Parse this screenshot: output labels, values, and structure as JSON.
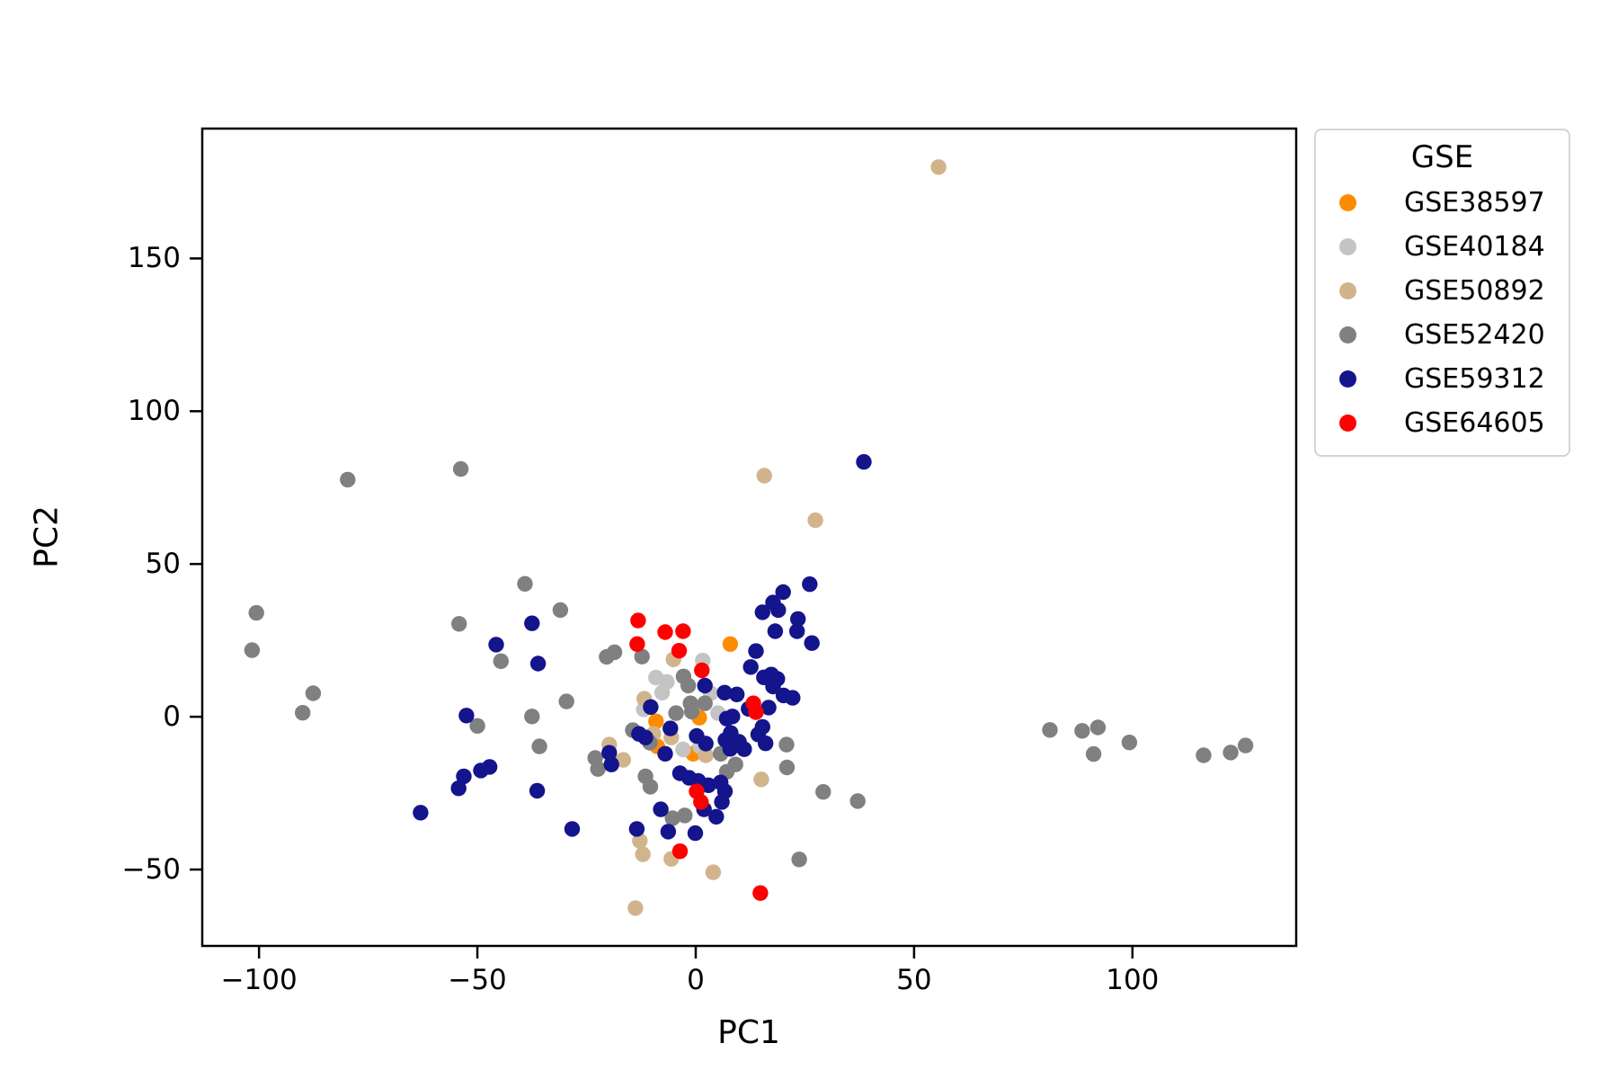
{
  "figure": {
    "background": "#ffffff"
  },
  "chart_data": {
    "type": "scatter",
    "title": "",
    "xlabel": "PC1",
    "ylabel": "PC2",
    "legend_title": "GSE",
    "legend_position": "upper right, outside axes",
    "grid": false,
    "xlim": [
      -113,
      137.5
    ],
    "ylim": [
      -75,
      192.5
    ],
    "x_ticks": [
      -100,
      -50,
      0,
      50,
      100
    ],
    "x_tick_labels": [
      "−100",
      "−50",
      "0",
      "50",
      "100"
    ],
    "y_ticks": [
      -50,
      0,
      50,
      100,
      150
    ],
    "y_tick_labels": [
      "−50",
      "0",
      "50",
      "100",
      "150"
    ],
    "marker_radius_px": 8.7,
    "series": [
      {
        "name": "GSE38597",
        "color": "#ff8c00",
        "points": [
          [
            7.9,
            23.8
          ],
          [
            -9.1,
            -1.5
          ],
          [
            0.8,
            -0.3
          ],
          [
            -8.8,
            -9.7
          ],
          [
            -0.6,
            -12.1
          ]
        ]
      },
      {
        "name": "GSE40184",
        "color": "#c4c4c4",
        "points": [
          [
            1.6,
            18.4
          ],
          [
            -9.1,
            12.8
          ],
          [
            -6.6,
            11.4
          ],
          [
            -7.7,
            7.9
          ],
          [
            3.4,
            7.7
          ],
          [
            5.1,
            1.2
          ],
          [
            -2.9,
            -10.7
          ],
          [
            1.0,
            -9.7
          ],
          [
            -11.9,
            2.4
          ]
        ]
      },
      {
        "name": "GSE50892",
        "color": "#d2b48c",
        "points": [
          [
            55.6,
            179.9
          ],
          [
            15.7,
            78.9
          ],
          [
            27.4,
            64.3
          ],
          [
            -5.1,
            18.8
          ],
          [
            -11.8,
            5.9
          ],
          [
            -9.7,
            -5.6
          ],
          [
            -5.6,
            -6.8
          ],
          [
            -19.8,
            -9.1
          ],
          [
            -16.6,
            -14.1
          ],
          [
            2.3,
            -12.6
          ],
          [
            15.0,
            -20.5
          ],
          [
            -12.8,
            -40.6
          ],
          [
            -12.1,
            -45.0
          ],
          [
            -5.6,
            -46.5
          ],
          [
            4.0,
            -50.9
          ],
          [
            -13.8,
            -62.6
          ]
        ]
      },
      {
        "name": "GSE52420",
        "color": "#808080",
        "points": [
          [
            -79.7,
            77.6
          ],
          [
            -53.8,
            81.1
          ],
          [
            -100.6,
            34.0
          ],
          [
            -54.2,
            30.4
          ],
          [
            -101.6,
            21.8
          ],
          [
            -44.6,
            18.2
          ],
          [
            -87.6,
            7.7
          ],
          [
            -90.0,
            1.3
          ],
          [
            -50.0,
            -3.0
          ],
          [
            -39.1,
            43.5
          ],
          [
            -31.0,
            34.9
          ],
          [
            -20.4,
            19.6
          ],
          [
            -18.6,
            21.1
          ],
          [
            -12.3,
            19.7
          ],
          [
            -2.8,
            13.2
          ],
          [
            -1.7,
            10.2
          ],
          [
            -1.2,
            4.4
          ],
          [
            2.1,
            4.4
          ],
          [
            -0.9,
            1.7
          ],
          [
            -4.5,
            1.2
          ],
          [
            -14.4,
            -4.4
          ],
          [
            -10.5,
            -8.5
          ],
          [
            -37.5,
            0.1
          ],
          [
            -29.6,
            5.0
          ],
          [
            -35.8,
            -9.7
          ],
          [
            -23.0,
            -13.5
          ],
          [
            -22.4,
            -17.1
          ],
          [
            -11.5,
            -19.5
          ],
          [
            -10.4,
            -22.9
          ],
          [
            -5.3,
            -33.2
          ],
          [
            -2.5,
            -32.3
          ],
          [
            5.7,
            -12.1
          ],
          [
            9.1,
            -15.6
          ],
          [
            7.1,
            -18.0
          ],
          [
            20.8,
            -9.1
          ],
          [
            20.9,
            -16.6
          ],
          [
            29.2,
            -24.6
          ],
          [
            37.1,
            -27.6
          ],
          [
            23.7,
            -46.7
          ],
          [
            81.1,
            -4.3
          ],
          [
            88.5,
            -4.6
          ],
          [
            92.1,
            -3.5
          ],
          [
            91.1,
            -12.2
          ],
          [
            99.3,
            -8.4
          ],
          [
            116.3,
            -12.6
          ],
          [
            122.5,
            -11.7
          ],
          [
            125.9,
            -9.4
          ]
        ]
      },
      {
        "name": "GSE59312",
        "color": "#14148c",
        "points": [
          [
            -45.7,
            23.6
          ],
          [
            -37.5,
            30.6
          ],
          [
            -36.1,
            17.4
          ],
          [
            -52.5,
            0.4
          ],
          [
            -47.2,
            -16.4
          ],
          [
            -49.2,
            -17.6
          ],
          [
            -53.1,
            -19.5
          ],
          [
            -54.3,
            -23.4
          ],
          [
            -63.0,
            -31.4
          ],
          [
            38.5,
            83.4
          ],
          [
            26.1,
            43.4
          ],
          [
            20.0,
            40.8
          ],
          [
            15.3,
            34.2
          ],
          [
            17.7,
            37.4
          ],
          [
            18.9,
            34.9
          ],
          [
            23.4,
            32.0
          ],
          [
            18.2,
            28.0
          ],
          [
            23.2,
            28.0
          ],
          [
            26.6,
            24.1
          ],
          [
            13.8,
            21.5
          ],
          [
            12.6,
            16.3
          ],
          [
            17.3,
            13.8
          ],
          [
            18.7,
            12.4
          ],
          [
            15.6,
            12.9
          ],
          [
            17.7,
            9.9
          ],
          [
            22.2,
            6.2
          ],
          [
            20.1,
            7.0
          ],
          [
            16.7,
            3.0
          ],
          [
            15.3,
            -3.3
          ],
          [
            14.3,
            -5.8
          ],
          [
            16.0,
            -8.7
          ],
          [
            2.1,
            10.2
          ],
          [
            6.6,
            7.9
          ],
          [
            9.4,
            7.3
          ],
          [
            -10.3,
            3.2
          ],
          [
            7.1,
            -0.6
          ],
          [
            8.4,
            0.1
          ],
          [
            12.1,
            2.6
          ],
          [
            -5.8,
            -3.8
          ],
          [
            -13.0,
            -5.6
          ],
          [
            -11.5,
            -6.8
          ],
          [
            0.2,
            -6.3
          ],
          [
            2.3,
            -8.8
          ],
          [
            8.0,
            -5.3
          ],
          [
            6.8,
            -7.6
          ],
          [
            9.9,
            -8.2
          ],
          [
            11.1,
            -10.6
          ],
          [
            7.9,
            -10.5
          ],
          [
            -7.0,
            -12.1
          ],
          [
            -19.8,
            -11.8
          ],
          [
            -19.3,
            -15.6
          ],
          [
            -3.6,
            -18.5
          ],
          [
            -1.5,
            -20.0
          ],
          [
            0.6,
            -21.0
          ],
          [
            2.9,
            -22.4
          ],
          [
            5.7,
            -21.5
          ],
          [
            6.7,
            -24.4
          ],
          [
            6.0,
            -27.9
          ],
          [
            1.9,
            -30.3
          ],
          [
            4.7,
            -32.7
          ],
          [
            -36.3,
            -24.2
          ],
          [
            -28.3,
            -36.7
          ],
          [
            -13.5,
            -36.7
          ],
          [
            -8.0,
            -30.3
          ],
          [
            -6.3,
            -37.6
          ],
          [
            -0.1,
            -38.1
          ]
        ]
      },
      {
        "name": "GSE64605",
        "color": "#ff0000",
        "points": [
          [
            -13.2,
            31.5
          ],
          [
            -7.0,
            27.7
          ],
          [
            -2.9,
            28.0
          ],
          [
            -13.4,
            23.8
          ],
          [
            -3.8,
            21.6
          ],
          [
            1.4,
            15.2
          ],
          [
            13.2,
            4.4
          ],
          [
            13.8,
            1.5
          ],
          [
            0.2,
            -24.4
          ],
          [
            1.2,
            -27.9
          ],
          [
            -3.6,
            -44.0
          ],
          [
            14.8,
            -57.7
          ]
        ]
      }
    ]
  }
}
